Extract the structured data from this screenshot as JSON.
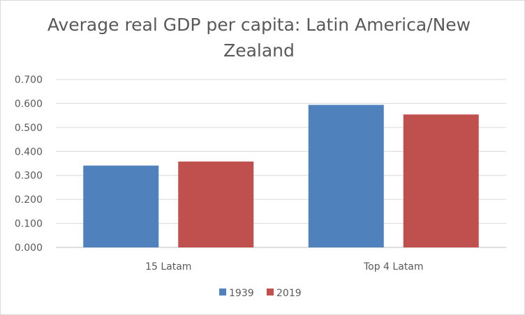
{
  "chart_data": {
    "type": "bar",
    "title": "Average real GDP per capita: Latin America/New Zealand",
    "categories": [
      "15 Latam",
      "Top 4 Latam"
    ],
    "series": [
      {
        "name": "1939",
        "values": [
          0.341,
          0.594
        ],
        "color": "#4f81bd"
      },
      {
        "name": "2019",
        "values": [
          0.358,
          0.554
        ],
        "color": "#c0504d"
      }
    ],
    "ylim": [
      0,
      0.7
    ],
    "yticks": [
      "0.000",
      "0.100",
      "0.200",
      "0.300",
      "0.400",
      "0.500",
      "0.600",
      "0.700"
    ],
    "grid": true,
    "legend_position": "bottom"
  }
}
